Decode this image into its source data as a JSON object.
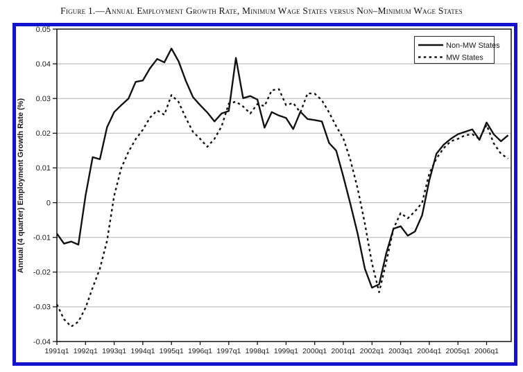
{
  "figure": {
    "title": "Figure 1.—Annual Employment Growth Rate, Minimum Wage States versus Non–Minimum Wage States"
  },
  "chart": {
    "border_color": "#1212cf",
    "grid_color": "#b3b3b3",
    "frame_color": "#000000",
    "text_color": "#1a1a1a"
  },
  "chart_data": {
    "type": "line",
    "title": "",
    "xlabel": "",
    "ylabel": "Annual (4 quarter) Employment Growth Rate (%)",
    "ylim": [
      -0.04,
      0.05
    ],
    "ytick_step": 0.01,
    "grid": "horizontal",
    "legend_position": "top-right",
    "x_start": "1991q1",
    "x_end": "2006q4",
    "x_tick_labels": [
      "1991q1",
      "1992q1",
      "1993q1",
      "1994q1",
      "1995q1",
      "1996q1",
      "1997q1",
      "1998q1",
      "1999q1",
      "2000q1",
      "2001q1",
      "2002q1",
      "2003q1",
      "2004q1",
      "2005q1",
      "2006q1"
    ],
    "series": [
      {
        "name": "Non-MW States",
        "style": "solid",
        "color": "#111111",
        "values": [
          -0.0089,
          -0.0118,
          -0.0112,
          -0.0121,
          0.002,
          0.0131,
          0.0125,
          0.0217,
          0.0261,
          0.0281,
          0.03,
          0.0348,
          0.0352,
          0.0387,
          0.0414,
          0.0404,
          0.0444,
          0.0407,
          0.0351,
          0.0304,
          0.0281,
          0.026,
          0.0234,
          0.0257,
          0.0264,
          0.0417,
          0.0301,
          0.0307,
          0.0297,
          0.0216,
          0.0261,
          0.0251,
          0.0244,
          0.0212,
          0.0262,
          0.0241,
          0.0238,
          0.0234,
          0.0172,
          0.015,
          0.0075,
          -0.0005,
          -0.009,
          -0.019,
          -0.0245,
          -0.0235,
          -0.0145,
          -0.0075,
          -0.0068,
          -0.0095,
          -0.0083,
          -0.0036,
          0.0064,
          0.0141,
          0.0167,
          0.0184,
          0.0197,
          0.0204,
          0.0211,
          0.0181,
          0.0231,
          0.0197,
          0.0177,
          0.0194
        ]
      },
      {
        "name": "MW States",
        "style": "dashed",
        "color": "#111111",
        "values": [
          -0.0293,
          -0.0336,
          -0.0357,
          -0.0343,
          -0.0303,
          -0.0245,
          -0.019,
          -0.011,
          0.002,
          0.01,
          0.0147,
          0.0183,
          0.021,
          0.0245,
          0.0266,
          0.0253,
          0.031,
          0.029,
          0.0244,
          0.0204,
          0.0184,
          0.0161,
          0.0184,
          0.022,
          0.0285,
          0.0291,
          0.0277,
          0.0257,
          0.0284,
          0.0278,
          0.0324,
          0.0327,
          0.0281,
          0.0287,
          0.026,
          0.0315,
          0.0314,
          0.0295,
          0.026,
          0.022,
          0.0185,
          0.0122,
          0.004,
          -0.006,
          -0.0175,
          -0.0258,
          -0.017,
          -0.0075,
          -0.003,
          -0.0045,
          -0.0025,
          0.0,
          0.0084,
          0.0127,
          0.0157,
          0.0177,
          0.0184,
          0.0194,
          0.0197,
          0.0184,
          0.0224,
          0.0171,
          0.0141,
          0.0127
        ]
      }
    ]
  }
}
